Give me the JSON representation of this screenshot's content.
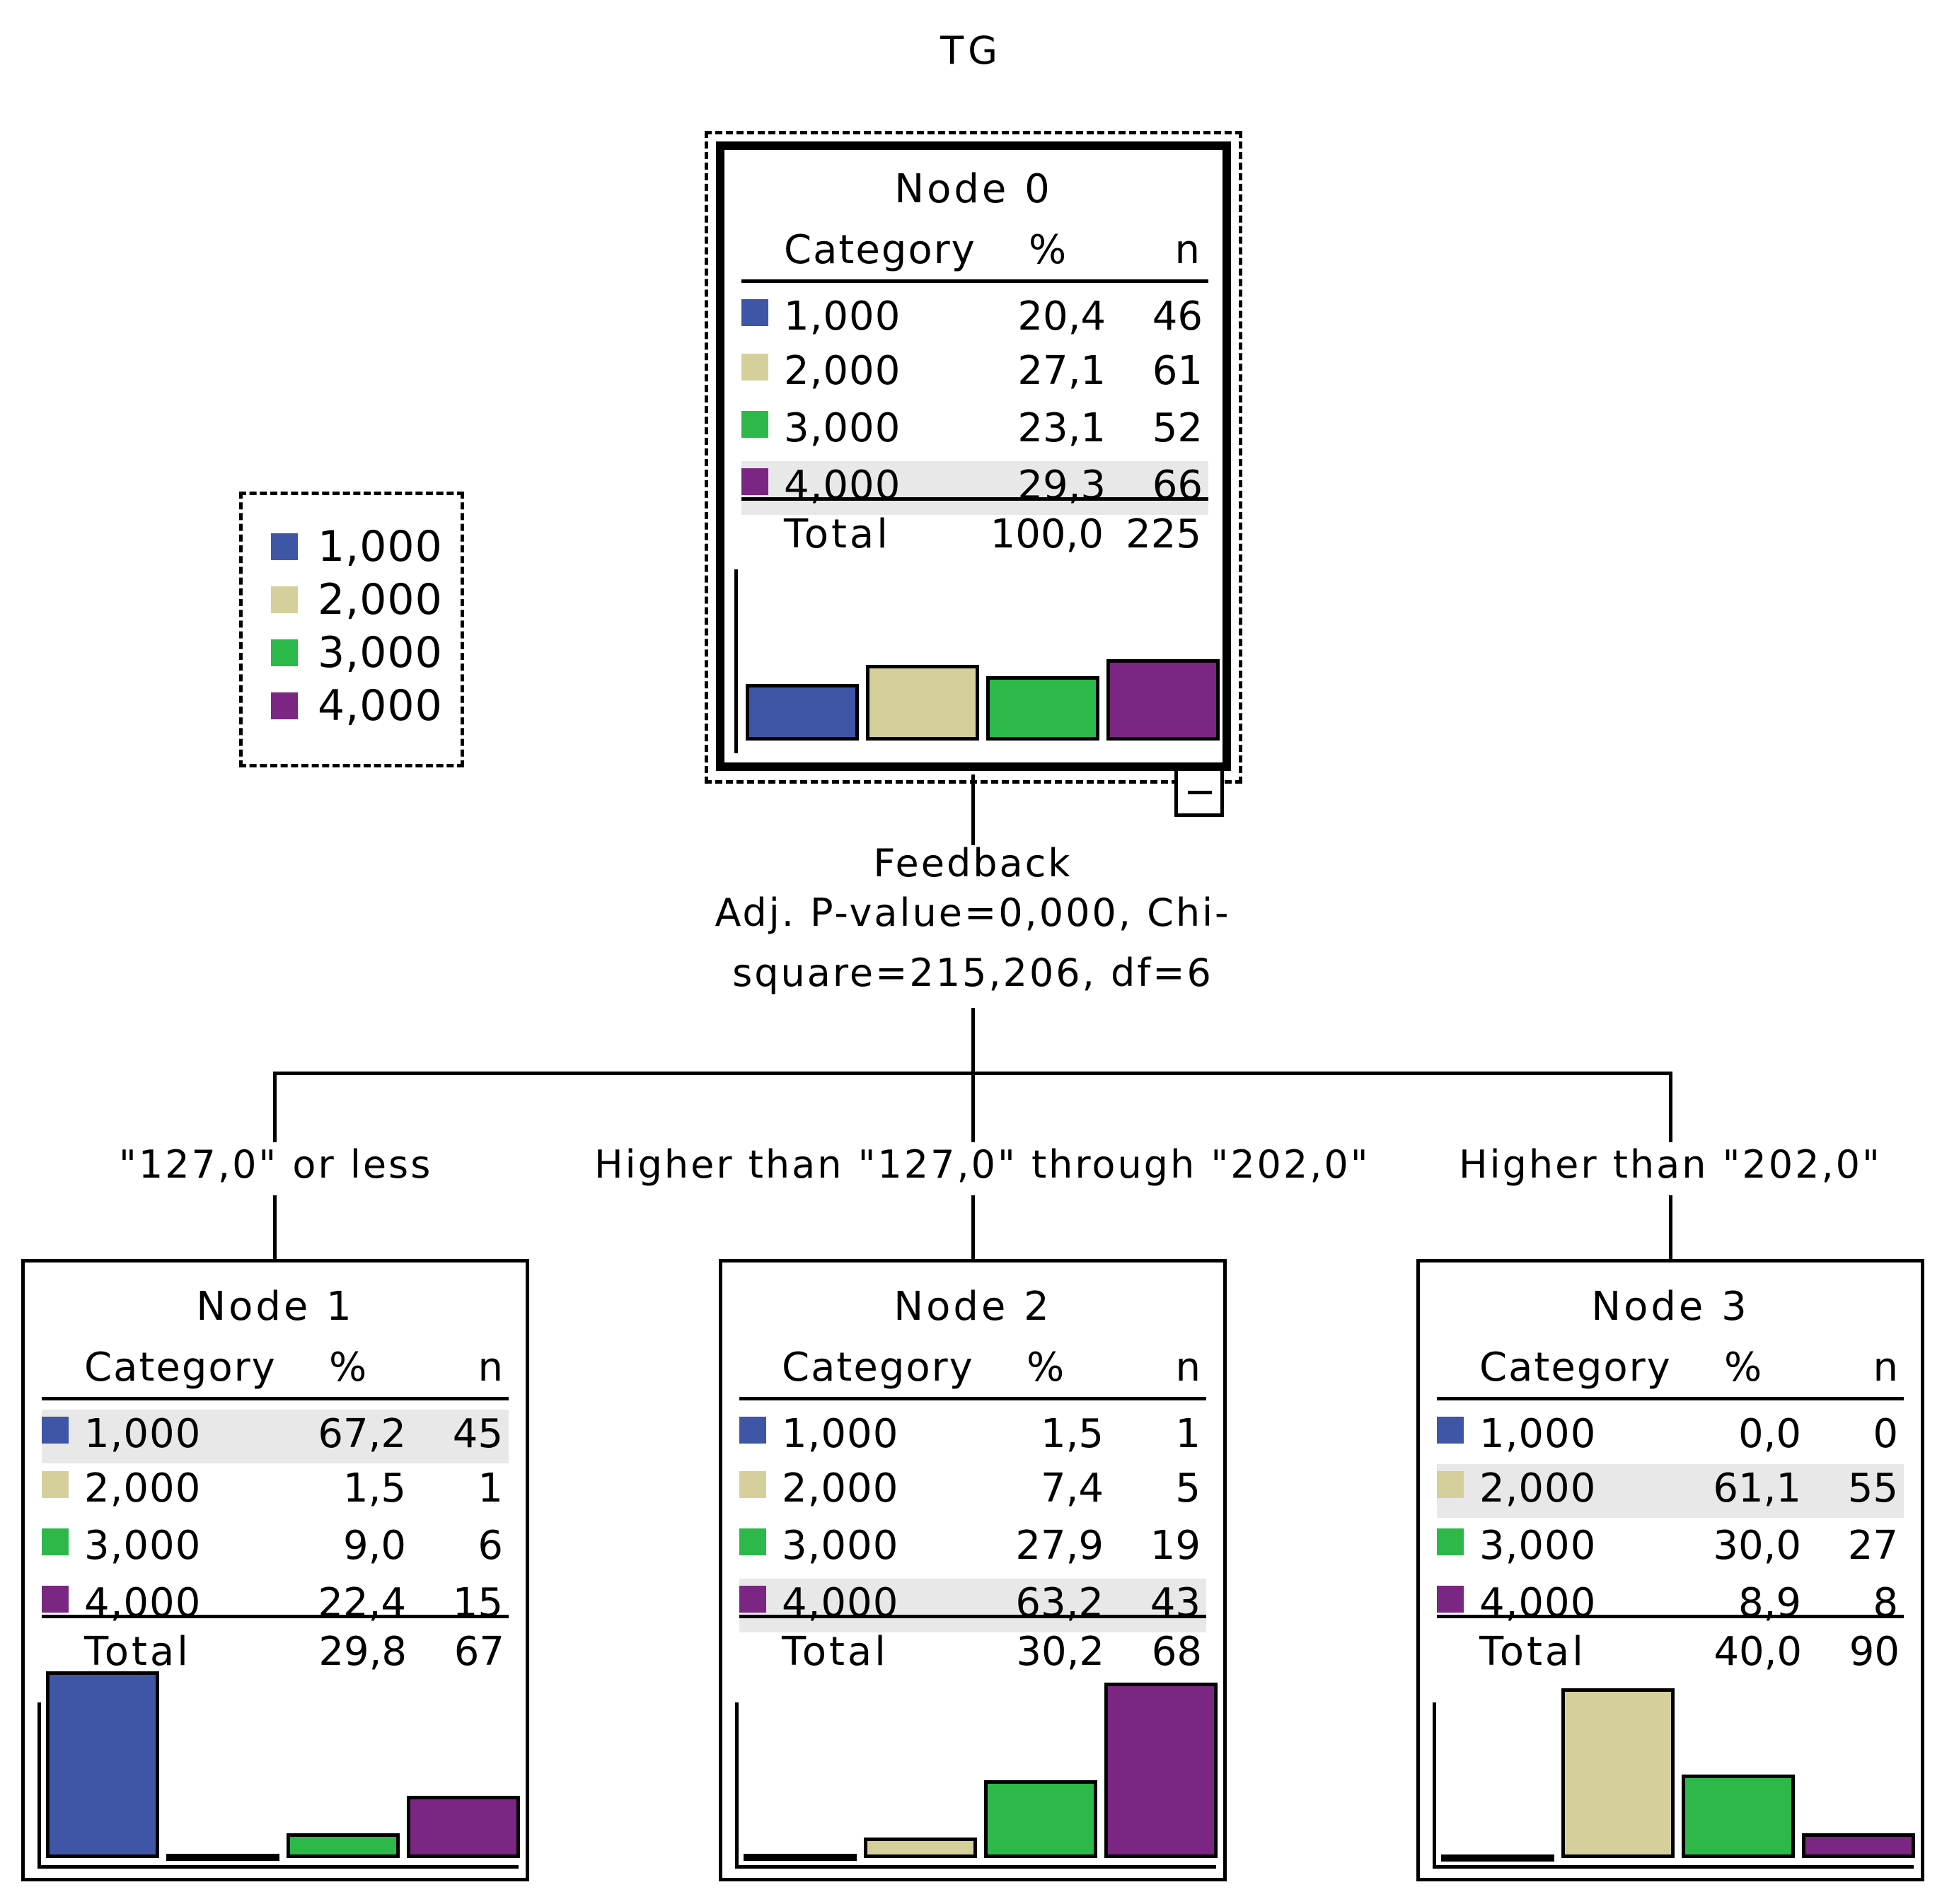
{
  "title": "TG",
  "colors": {
    "c1": "#3f56a6",
    "c2": "#d5cf9b",
    "c3": "#2db84a",
    "c4": "#7a2682"
  },
  "legend": [
    {
      "label": "1,000",
      "color": "#3f56a6"
    },
    {
      "label": "2,000",
      "color": "#d5cf9b"
    },
    {
      "label": "3,000",
      "color": "#2db84a"
    },
    {
      "label": "4,000",
      "color": "#7a2682"
    }
  ],
  "headers": {
    "category": "Category",
    "pct": "%",
    "n": "n",
    "total": "Total"
  },
  "nodes": [
    {
      "title": "Node 0",
      "rows": [
        {
          "cat": "1,000",
          "pct": "20,4",
          "n": "46"
        },
        {
          "cat": "2,000",
          "pct": "27,1",
          "n": "61"
        },
        {
          "cat": "3,000",
          "pct": "23,1",
          "n": "52"
        },
        {
          "cat": "4,000",
          "pct": "29,3",
          "n": "66"
        }
      ],
      "total_pct": "100,0",
      "total_n": "225",
      "highlight": 3
    },
    {
      "title": "Node 1",
      "rows": [
        {
          "cat": "1,000",
          "pct": "67,2",
          "n": "45"
        },
        {
          "cat": "2,000",
          "pct": "1,5",
          "n": "1"
        },
        {
          "cat": "3,000",
          "pct": "9,0",
          "n": "6"
        },
        {
          "cat": "4,000",
          "pct": "22,4",
          "n": "15"
        }
      ],
      "total_pct": "29,8",
      "total_n": "67",
      "highlight": 0
    },
    {
      "title": "Node 2",
      "rows": [
        {
          "cat": "1,000",
          "pct": "1,5",
          "n": "1"
        },
        {
          "cat": "2,000",
          "pct": "7,4",
          "n": "5"
        },
        {
          "cat": "3,000",
          "pct": "27,9",
          "n": "19"
        },
        {
          "cat": "4,000",
          "pct": "63,2",
          "n": "43"
        }
      ],
      "total_pct": "30,2",
      "total_n": "68",
      "highlight": 3
    },
    {
      "title": "Node 3",
      "rows": [
        {
          "cat": "1,000",
          "pct": "0,0",
          "n": "0"
        },
        {
          "cat": "2,000",
          "pct": "61,1",
          "n": "55"
        },
        {
          "cat": "3,000",
          "pct": "30,0",
          "n": "27"
        },
        {
          "cat": "4,000",
          "pct": "8,9",
          "n": "8"
        }
      ],
      "total_pct": "40,0",
      "total_n": "90",
      "highlight": 1
    }
  ],
  "split": {
    "variable": "Feedback",
    "stats_line1": "Adj. P-value=0,000, Chi-",
    "stats_line2": "square=215,206, df=6"
  },
  "branches": [
    "\"127,0\" or less",
    "Higher than \"127,0\" through \"202,0\"",
    "Higher than \"202,0\""
  ],
  "chart_data": [
    {
      "type": "bar",
      "title": "Node 0",
      "categories": [
        "1,000",
        "2,000",
        "3,000",
        "4,000"
      ],
      "values": [
        20.4,
        27.1,
        23.1,
        29.3
      ],
      "ylim": [
        0,
        100
      ]
    },
    {
      "type": "bar",
      "title": "Node 1",
      "categories": [
        "1,000",
        "2,000",
        "3,000",
        "4,000"
      ],
      "values": [
        67.2,
        1.5,
        9.0,
        22.4
      ],
      "ylim": [
        0,
        100
      ]
    },
    {
      "type": "bar",
      "title": "Node 2",
      "categories": [
        "1,000",
        "2,000",
        "3,000",
        "4,000"
      ],
      "values": [
        1.5,
        7.4,
        27.9,
        63.2
      ],
      "ylim": [
        0,
        100
      ]
    },
    {
      "type": "bar",
      "title": "Node 3",
      "categories": [
        "1,000",
        "2,000",
        "3,000",
        "4,000"
      ],
      "values": [
        0.0,
        61.1,
        30.0,
        8.9
      ],
      "ylim": [
        0,
        100
      ]
    }
  ]
}
